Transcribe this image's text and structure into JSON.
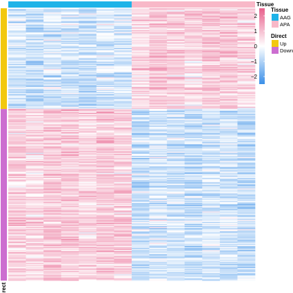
{
  "chart_data": {
    "type": "heatmap",
    "title": "",
    "n_columns": 14,
    "columns_per_tissue": 7,
    "column_annotation": {
      "name": "Tissue",
      "values": [
        "AAG",
        "AAG",
        "AAG",
        "AAG",
        "AAG",
        "AAG",
        "AAG",
        "APA",
        "APA",
        "APA",
        "APA",
        "APA",
        "APA",
        "APA"
      ]
    },
    "row_annotation": {
      "name": "Direct",
      "groups": [
        {
          "level": "Up",
          "fraction": 0.37
        },
        {
          "level": "Down",
          "fraction": 0.63
        }
      ]
    },
    "group_means": {
      "Up": {
        "AAG": -0.6,
        "APA": 0.75
      },
      "Down": {
        "AAG": 0.8,
        "APA": -0.55
      }
    },
    "value_range": [
      -2.5,
      2.5
    ],
    "colorbar": {
      "title": "",
      "ticks": [
        "2",
        "1",
        "0",
        "−1",
        "−2"
      ],
      "tick_values": [
        2,
        1,
        0,
        -1,
        -2
      ],
      "low_color": "#3a8fe8",
      "mid_color": "#ffffff",
      "high_color": "#e8608c"
    },
    "legends": [
      {
        "title": "Tissue",
        "items": [
          {
            "label": "AAG",
            "color": "#1eb3e8"
          },
          {
            "label": "APA",
            "color": "#f8b8c8"
          }
        ]
      },
      {
        "title": "Direct",
        "items": [
          {
            "label": "Up",
            "color": "#f2c80f"
          },
          {
            "label": "Down",
            "color": "#cc6ed0"
          }
        ]
      }
    ],
    "annotation_titles": {
      "column": "Tissue",
      "row": "Direct"
    }
  }
}
